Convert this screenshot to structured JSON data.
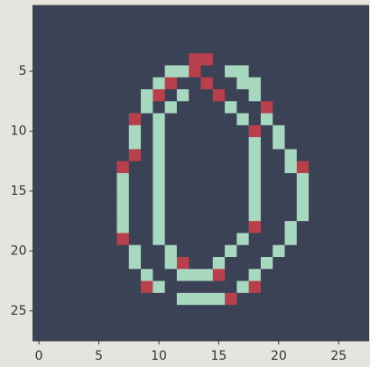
{
  "chart_data": {
    "type": "image",
    "xlim": [
      -0.5,
      27.5
    ],
    "ylim": [
      27.5,
      -0.5
    ],
    "xticks": [
      0,
      5,
      10,
      15,
      20,
      25
    ],
    "yticks": [
      5,
      10,
      15,
      20,
      25
    ],
    "colormap": [
      "#3c4256",
      "#b8404c",
      "#a8d8c0"
    ],
    "values": [
      [
        0,
        0,
        0,
        0,
        0,
        0,
        0,
        0,
        0,
        0,
        0,
        0,
        0,
        0,
        0,
        0,
        0,
        0,
        0,
        0,
        0,
        0,
        0,
        0,
        0,
        0,
        0,
        0
      ],
      [
        0,
        0,
        0,
        0,
        0,
        0,
        0,
        0,
        0,
        0,
        0,
        0,
        0,
        0,
        0,
        0,
        0,
        0,
        0,
        0,
        0,
        0,
        0,
        0,
        0,
        0,
        0,
        0
      ],
      [
        0,
        0,
        0,
        0,
        0,
        0,
        0,
        0,
        0,
        0,
        0,
        0,
        0,
        0,
        0,
        0,
        0,
        0,
        0,
        0,
        0,
        0,
        0,
        0,
        0,
        0,
        0,
        0
      ],
      [
        0,
        0,
        0,
        0,
        0,
        0,
        0,
        0,
        0,
        0,
        0,
        0,
        0,
        0,
        0,
        0,
        0,
        0,
        0,
        0,
        0,
        0,
        0,
        0,
        0,
        0,
        0,
        0
      ],
      [
        0,
        0,
        0,
        0,
        0,
        0,
        0,
        0,
        0,
        0,
        0,
        0,
        0,
        0.5,
        0.5,
        0,
        0,
        0,
        0,
        0,
        0,
        0,
        0,
        0,
        0,
        0,
        0,
        0
      ],
      [
        0,
        0,
        0,
        0,
        0,
        0,
        0,
        0,
        0,
        0,
        0,
        1,
        1,
        0.5,
        0,
        0,
        1,
        1,
        0,
        0,
        0,
        0,
        0,
        0,
        0,
        0,
        0,
        0
      ],
      [
        0,
        0,
        0,
        0,
        0,
        0,
        0,
        0,
        0,
        0,
        1,
        0.5,
        0,
        0,
        0.5,
        0,
        0,
        1,
        1,
        0,
        0,
        0,
        0,
        0,
        0,
        0,
        0,
        0
      ],
      [
        0,
        0,
        0,
        0,
        0,
        0,
        0,
        0,
        0,
        1,
        0.5,
        0,
        1,
        0,
        0,
        0.5,
        0,
        0,
        1,
        0,
        0,
        0,
        0,
        0,
        0,
        0,
        0,
        0
      ],
      [
        0,
        0,
        0,
        0,
        0,
        0,
        0,
        0,
        0,
        1,
        0,
        1,
        0,
        0,
        0,
        0,
        1,
        0,
        0,
        0.5,
        0,
        0,
        0,
        0,
        0,
        0,
        0,
        0
      ],
      [
        0,
        0,
        0,
        0,
        0,
        0,
        0,
        0,
        0.5,
        0,
        1,
        0,
        0,
        0,
        0,
        0,
        0,
        1,
        0,
        1,
        0,
        0,
        0,
        0,
        0,
        0,
        0,
        0
      ],
      [
        0,
        0,
        0,
        0,
        0,
        0,
        0,
        0,
        1,
        0,
        1,
        0,
        0,
        0,
        0,
        0,
        0,
        0,
        0.5,
        0,
        1,
        0,
        0,
        0,
        0,
        0,
        0,
        0
      ],
      [
        0,
        0,
        0,
        0,
        0,
        0,
        0,
        0,
        1,
        0,
        1,
        0,
        0,
        0,
        0,
        0,
        0,
        0,
        1,
        0,
        1,
        0,
        0,
        0,
        0,
        0,
        0,
        0
      ],
      [
        0,
        0,
        0,
        0,
        0,
        0,
        0,
        0,
        0.5,
        0,
        1,
        0,
        0,
        0,
        0,
        0,
        0,
        0,
        1,
        0,
        0,
        1,
        0,
        0,
        0,
        0,
        0,
        0
      ],
      [
        0,
        0,
        0,
        0,
        0,
        0,
        0,
        0.5,
        0,
        0,
        1,
        0,
        0,
        0,
        0,
        0,
        0,
        0,
        1,
        0,
        0,
        1,
        0.5,
        0,
        0,
        0,
        0,
        0
      ],
      [
        0,
        0,
        0,
        0,
        0,
        0,
        0,
        1,
        0,
        0,
        1,
        0,
        0,
        0,
        0,
        0,
        0,
        0,
        1,
        0,
        0,
        0,
        1,
        0,
        0,
        0,
        0,
        0
      ],
      [
        0,
        0,
        0,
        0,
        0,
        0,
        0,
        1,
        0,
        0,
        1,
        0,
        0,
        0,
        0,
        0,
        0,
        0,
        1,
        0,
        0,
        0,
        1,
        0,
        0,
        0,
        0,
        0
      ],
      [
        0,
        0,
        0,
        0,
        0,
        0,
        0,
        1,
        0,
        0,
        1,
        0,
        0,
        0,
        0,
        0,
        0,
        0,
        1,
        0,
        0,
        0,
        1,
        0,
        0,
        0,
        0,
        0
      ],
      [
        0,
        0,
        0,
        0,
        0,
        0,
        0,
        1,
        0,
        0,
        1,
        0,
        0,
        0,
        0,
        0,
        0,
        0,
        1,
        0,
        0,
        0,
        1,
        0,
        0,
        0,
        0,
        0
      ],
      [
        0,
        0,
        0,
        0,
        0,
        0,
        0,
        1,
        0,
        0,
        1,
        0,
        0,
        0,
        0,
        0,
        0,
        0,
        0.5,
        0,
        0,
        1,
        0,
        0,
        0,
        0,
        0,
        0
      ],
      [
        0,
        0,
        0,
        0,
        0,
        0,
        0,
        0.5,
        0,
        0,
        1,
        0,
        0,
        0,
        0,
        0,
        0,
        1,
        0,
        0,
        0,
        1,
        0,
        0,
        0,
        0,
        0,
        0
      ],
      [
        0,
        0,
        0,
        0,
        0,
        0,
        0,
        0,
        1,
        0,
        0,
        1,
        0,
        0,
        0,
        0,
        1,
        0,
        0,
        0,
        1,
        0,
        0,
        0,
        0,
        0,
        0,
        0
      ],
      [
        0,
        0,
        0,
        0,
        0,
        0,
        0,
        0,
        1,
        0,
        0,
        1,
        0.5,
        0,
        0,
        1,
        0,
        0,
        0,
        1,
        0,
        0,
        0,
        0,
        0,
        0,
        0,
        0
      ],
      [
        0,
        0,
        0,
        0,
        0,
        0,
        0,
        0,
        0,
        1,
        0,
        0,
        1,
        1,
        1,
        0.5,
        0,
        0,
        1,
        0,
        0,
        0,
        0,
        0,
        0,
        0,
        0,
        0
      ],
      [
        0,
        0,
        0,
        0,
        0,
        0,
        0,
        0,
        0,
        0.5,
        1,
        0,
        0,
        0,
        0,
        0,
        0,
        1,
        0.5,
        0,
        0,
        0,
        0,
        0,
        0,
        0,
        0,
        0
      ],
      [
        0,
        0,
        0,
        0,
        0,
        0,
        0,
        0,
        0,
        0,
        0,
        0,
        1,
        1,
        1,
        1,
        0.5,
        0,
        0,
        0,
        0,
        0,
        0,
        0,
        0,
        0,
        0,
        0
      ],
      [
        0,
        0,
        0,
        0,
        0,
        0,
        0,
        0,
        0,
        0,
        0,
        0,
        0,
        0,
        0,
        0,
        0,
        0,
        0,
        0,
        0,
        0,
        0,
        0,
        0,
        0,
        0,
        0
      ],
      [
        0,
        0,
        0,
        0,
        0,
        0,
        0,
        0,
        0,
        0,
        0,
        0,
        0,
        0,
        0,
        0,
        0,
        0,
        0,
        0,
        0,
        0,
        0,
        0,
        0,
        0,
        0,
        0
      ],
      [
        0,
        0,
        0,
        0,
        0,
        0,
        0,
        0,
        0,
        0,
        0,
        0,
        0,
        0,
        0,
        0,
        0,
        0,
        0,
        0,
        0,
        0,
        0,
        0,
        0,
        0,
        0,
        0
      ]
    ]
  }
}
